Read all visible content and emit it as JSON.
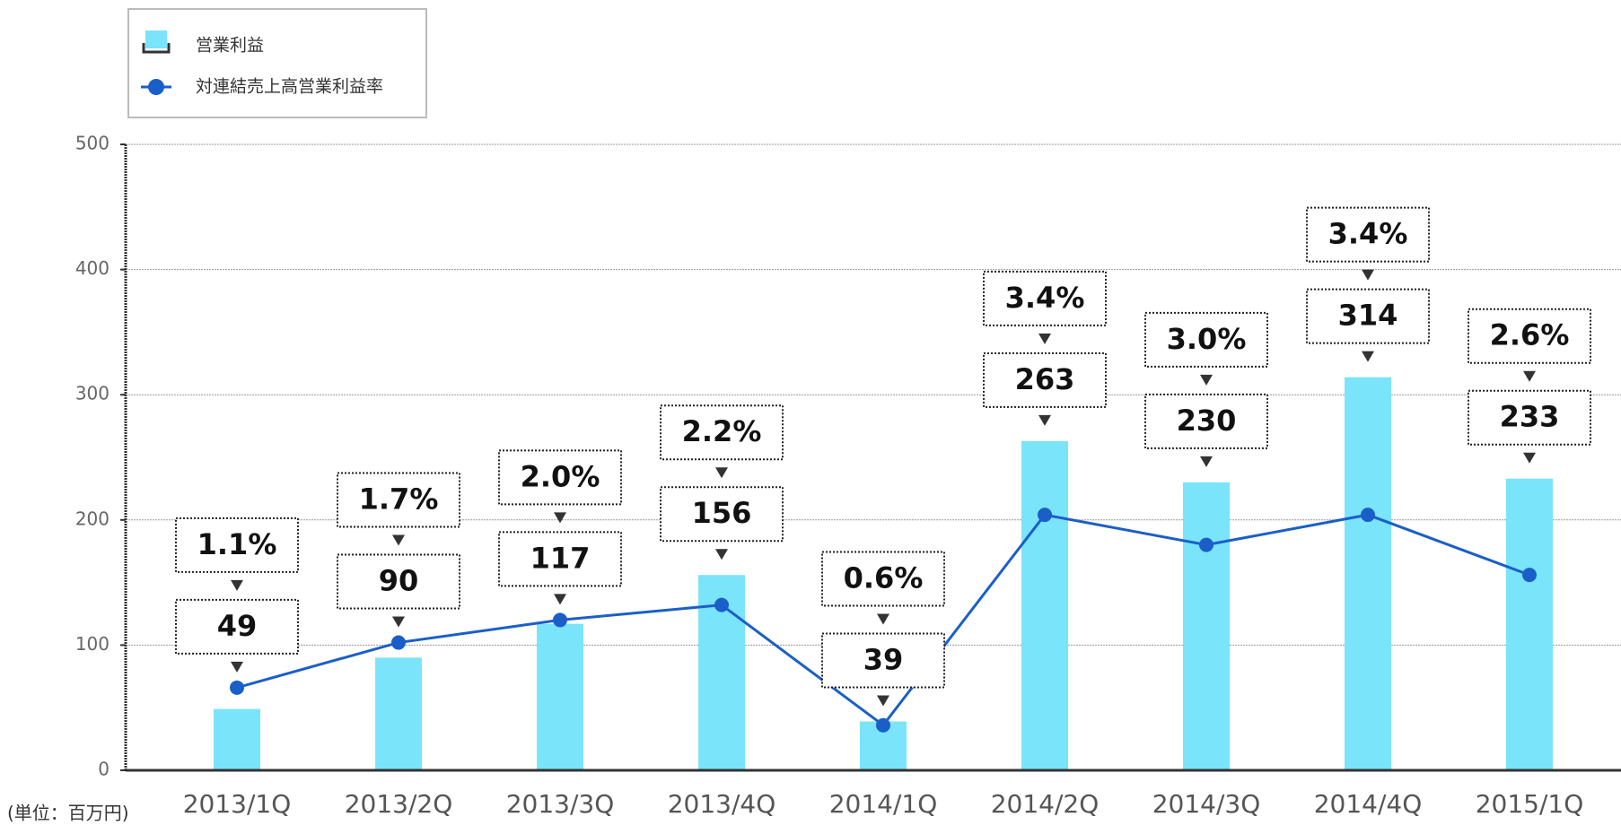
{
  "chart_data": {
    "type": "bar",
    "categories": [
      "2013/1Q",
      "2013/2Q",
      "2013/3Q",
      "2013/4Q",
      "2014/1Q",
      "2014/2Q",
      "2014/3Q",
      "2014/4Q",
      "2015/1Q"
    ],
    "series": [
      {
        "name": "営業利益",
        "type": "bar",
        "color": "#7ae4fb",
        "values": [
          49,
          90,
          117,
          156,
          39,
          263,
          230,
          314,
          233
        ]
      },
      {
        "name": "対連結売上高営業利益率",
        "type": "line",
        "axis": "y2",
        "color": "#1a5fc8",
        "values": [
          1.1,
          1.7,
          2.0,
          2.2,
          0.6,
          3.4,
          3.0,
          3.4,
          2.6
        ],
        "value_labels": [
          "1.1%",
          "1.7%",
          "2.0%",
          "2.2%",
          "0.6%",
          "3.4%",
          "3.0%",
          "3.4%",
          "2.6%"
        ]
      }
    ],
    "ylim": [
      0,
      500
    ],
    "yticks": [
      0,
      100,
      200,
      300,
      400,
      500
    ],
    "y2lim": [
      0,
      8.33
    ],
    "grid": true,
    "legend": "top-left",
    "unit_note": "(単位：百万円)"
  }
}
